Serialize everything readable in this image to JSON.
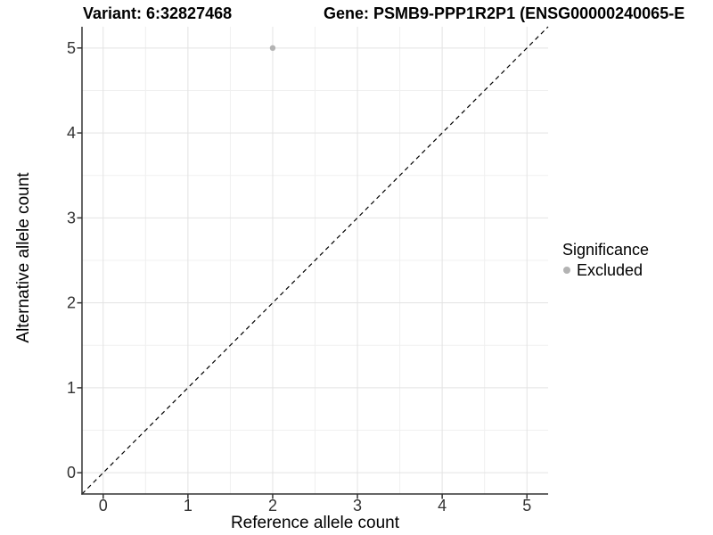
{
  "chart_data": {
    "type": "scatter",
    "title_variant": "Variant: 6:32827468",
    "title_gene": "Gene: PSMB9-PPP1R2P1 (ENSG00000240065-E",
    "xlabel": "Reference allele count",
    "ylabel": "Alternative allele count",
    "xlim": [
      -0.25,
      5.25
    ],
    "ylim": [
      -0.25,
      5.25
    ],
    "x_major_ticks": [
      0,
      1,
      2,
      3,
      4,
      5
    ],
    "y_major_ticks": [
      0,
      1,
      2,
      3,
      4,
      5
    ],
    "x_minor_ticks": [
      0.5,
      1.5,
      2.5,
      3.5,
      4.5
    ],
    "y_minor_ticks": [
      0.5,
      1.5,
      2.5,
      3.5,
      4.5
    ],
    "grid": true,
    "points": [
      {
        "x": 2,
        "y": 5,
        "significance": "Excluded"
      }
    ],
    "identity_line": {
      "slope": 1,
      "intercept": 0,
      "style": "dashed"
    },
    "legend": {
      "title": "Significance",
      "position": "right",
      "entries": [
        {
          "label": "Excluded",
          "color": "#b3b3b3",
          "marker": "circle"
        }
      ]
    },
    "colors": {
      "background": "#ffffff",
      "point_excluded": "#b3b3b3",
      "grid_major": "#e3e3e3",
      "grid_minor": "#f0f0f0",
      "axis_line": "#333333",
      "tick_text": "#333333",
      "identity_line": "#000000"
    }
  }
}
